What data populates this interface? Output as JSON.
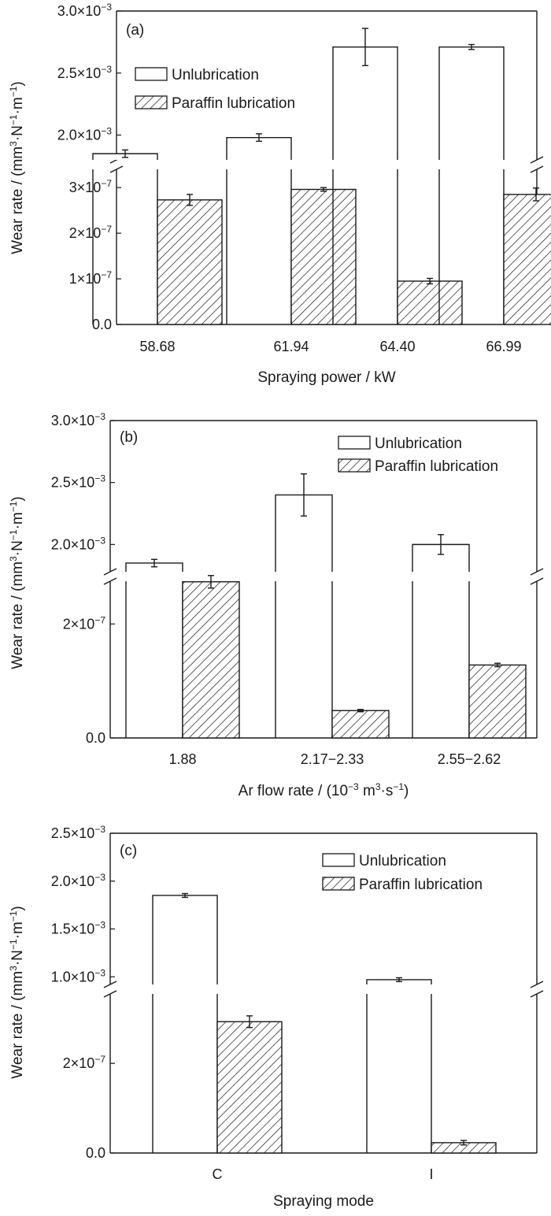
{
  "chart_data": [
    {
      "type": "bar",
      "panel_label": "(a)",
      "categories": [
        "58.68",
        "61.94",
        "64.40",
        "66.99"
      ],
      "xlabel": "Spraying power / kW",
      "ylabel": "Wear rate / (mm3·N-1·m-1)",
      "scale": "broken y-axis",
      "upper_segment": {
        "ylim": [
          0.0018,
          0.003
        ],
        "ticks": [
          "2.0×10-3",
          "2.5×10-3",
          "3.0×10-3"
        ],
        "tick_values": [
          0.002,
          0.0025,
          0.003
        ]
      },
      "lower_segment": {
        "ylim": [
          0,
          3.4e-07
        ],
        "ticks": [
          "0.0",
          "1×10-7",
          "2×10-7",
          "3×10-7"
        ],
        "tick_values": [
          0,
          1e-07,
          2e-07,
          3e-07
        ]
      },
      "legend_position": "upper-left",
      "series": [
        {
          "name": "Unlubrication",
          "pattern": "open",
          "values": [
            0.00185,
            0.00198,
            0.00271,
            0.00271
          ],
          "errors": [
            3e-05,
            3e-05,
            0.00015,
            2e-05
          ]
        },
        {
          "name": "Paraffin lubrication",
          "pattern": "hatched",
          "values": [
            2.73e-07,
            2.96e-07,
            9.5e-08,
            2.85e-07
          ],
          "errors": [
            1.2e-08,
            4e-09,
            6e-09,
            1.4e-08
          ]
        }
      ]
    },
    {
      "type": "bar",
      "panel_label": "(b)",
      "categories": [
        "1.88",
        "2.17−2.33",
        "2.55−2.62"
      ],
      "xlabel": "Ar flow rate / (10-3 m3·s-1)",
      "ylabel": "Wear rate / (mm3·N-1·m-1)",
      "scale": "broken y-axis",
      "upper_segment": {
        "ylim": [
          0.00178,
          0.003
        ],
        "ticks": [
          "2.0×10-3",
          "2.5×10-3",
          "3.0×10-3"
        ],
        "tick_values": [
          0.002,
          0.0025,
          0.003
        ]
      },
      "lower_segment": {
        "ylim": [
          0,
          2.75e-07
        ],
        "ticks": [
          "0.0",
          "2×10-7"
        ],
        "tick_values": [
          0,
          2e-07
        ]
      },
      "legend_position": "upper-right",
      "series": [
        {
          "name": "Unlubrication",
          "pattern": "open",
          "values": [
            0.00185,
            0.0024,
            0.002
          ],
          "errors": [
            3e-05,
            0.00017,
            8e-05
          ]
        },
        {
          "name": "Paraffin lubrication",
          "pattern": "hatched",
          "values": [
            2.74e-07,
            4.8e-08,
            1.28e-07
          ],
          "errors": [
            1.1e-08,
            2e-09,
            3e-09
          ]
        }
      ]
    },
    {
      "type": "bar",
      "panel_label": "(c)",
      "categories": [
        "C",
        "I"
      ],
      "xlabel": "Spraying mode",
      "ylabel": "Wear rate / (mm3·N-1·m-1)",
      "scale": "broken y-axis",
      "upper_segment": {
        "ylim": [
          0.00092,
          0.0025
        ],
        "ticks": [
          "1.0×10-3",
          "1.5×10-3",
          "2.0×10-3",
          "2.5×10-3"
        ],
        "tick_values": [
          0.001,
          0.0015,
          0.002,
          0.0025
        ]
      },
      "lower_segment": {
        "ylim": [
          0,
          3.55e-07
        ],
        "ticks": [
          "0.0",
          "2×10-7"
        ],
        "tick_values": [
          0,
          2e-07
        ]
      },
      "legend_position": "upper-right",
      "series": [
        {
          "name": "Unlubrication",
          "pattern": "open",
          "values": [
            0.00185,
            0.00097
          ],
          "errors": [
            2e-05,
            2e-05
          ]
        },
        {
          "name": "Paraffin lubrication",
          "pattern": "hatched",
          "values": [
            2.93e-07,
            2.3e-08
          ],
          "errors": [
            1.3e-08,
            5e-09
          ]
        }
      ]
    }
  ]
}
